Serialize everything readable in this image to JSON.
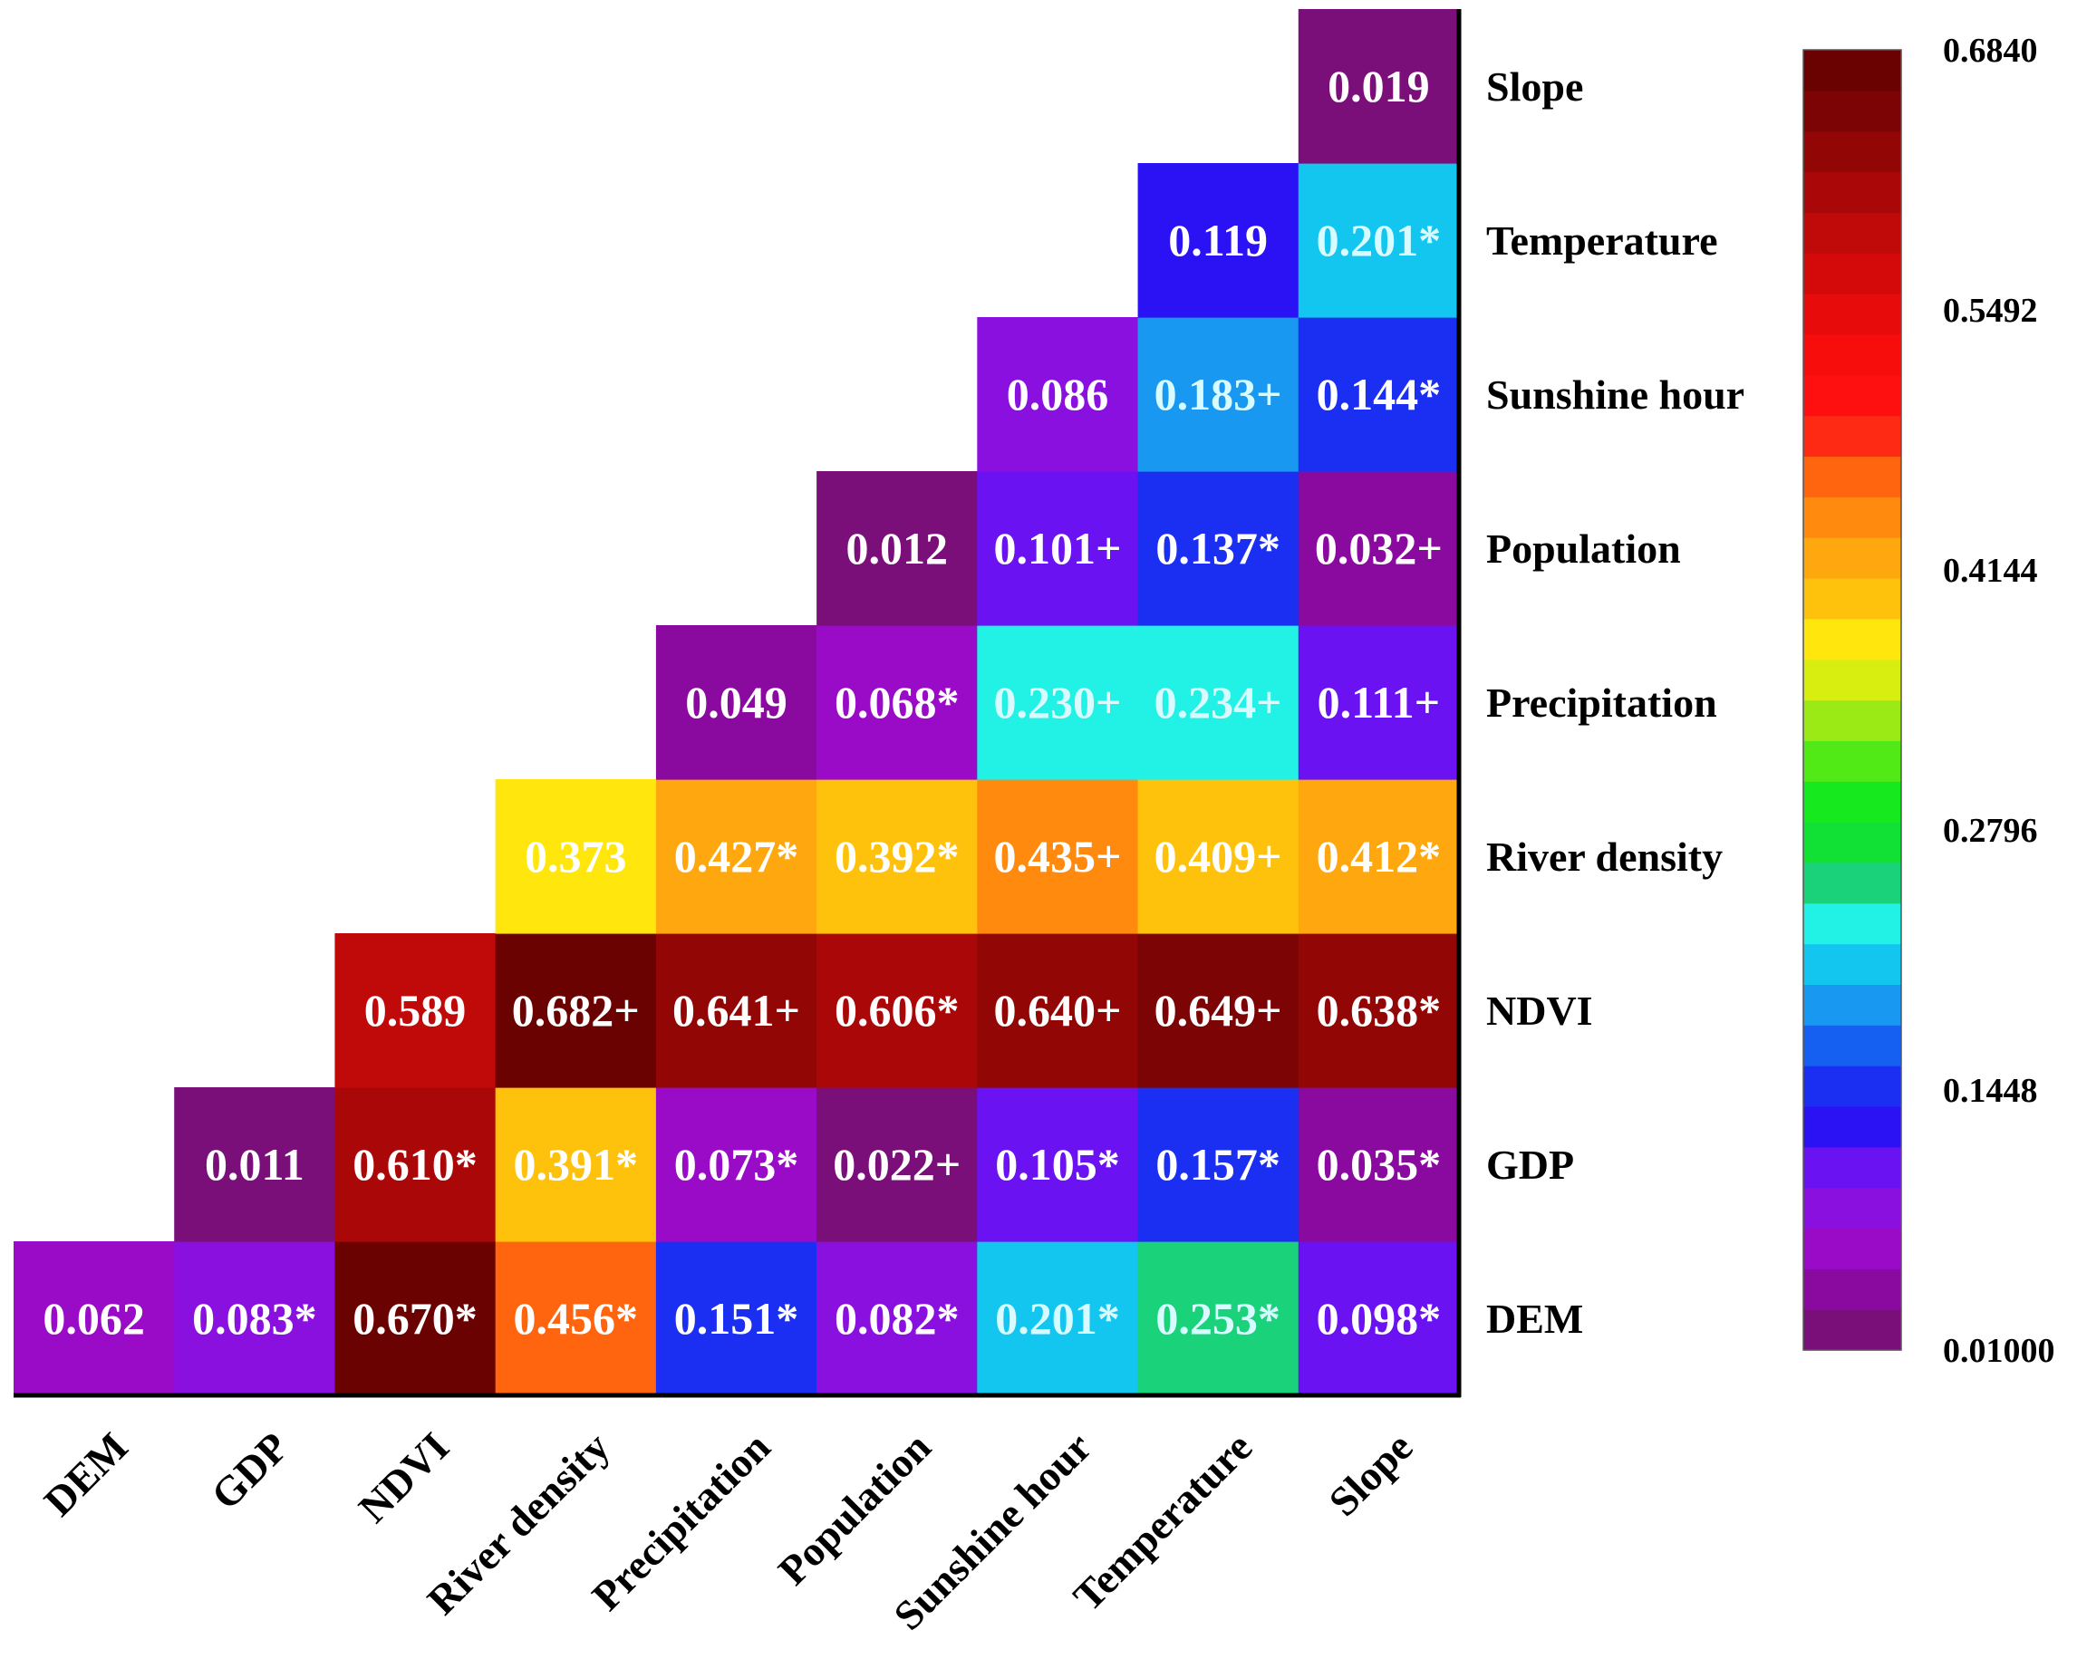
{
  "chart_data": {
    "type": "heatmap",
    "layout": "lower-triangular interaction matrix",
    "variables": [
      "DEM",
      "GDP",
      "NDVI",
      "River density",
      "Precipitation",
      "Population",
      "Sunshine hour",
      "Temperature",
      "Slope"
    ],
    "x_labels": [
      "DEM",
      "GDP",
      "NDVI",
      "River density",
      "Precipitation",
      "Population",
      "Sunshine hour",
      "Temperature",
      "Slope"
    ],
    "y_labels_top_to_bottom": [
      "Slope",
      "Temperature",
      "Sunshine hour",
      "Population",
      "Precipitation",
      "River density",
      "NDVI",
      "GDP",
      "DEM"
    ],
    "rows": [
      {
        "row": "DEM",
        "cells": [
          {
            "col": "DEM",
            "value": 0.062,
            "label": "0.062"
          },
          {
            "col": "GDP",
            "value": 0.083,
            "label": "0.083*"
          },
          {
            "col": "NDVI",
            "value": 0.67,
            "label": "0.670*"
          },
          {
            "col": "River density",
            "value": 0.456,
            "label": "0.456*"
          },
          {
            "col": "Precipitation",
            "value": 0.151,
            "label": "0.151*"
          },
          {
            "col": "Population",
            "value": 0.082,
            "label": "0.082*"
          },
          {
            "col": "Sunshine hour",
            "value": 0.201,
            "label": "0.201*"
          },
          {
            "col": "Temperature",
            "value": 0.253,
            "label": "0.253*"
          },
          {
            "col": "Slope",
            "value": 0.098,
            "label": "0.098*"
          }
        ]
      },
      {
        "row": "GDP",
        "cells": [
          {
            "col": "GDP",
            "value": 0.011,
            "label": "0.011"
          },
          {
            "col": "NDVI",
            "value": 0.61,
            "label": "0.610*"
          },
          {
            "col": "River density",
            "value": 0.391,
            "label": "0.391*"
          },
          {
            "col": "Precipitation",
            "value": 0.073,
            "label": "0.073*"
          },
          {
            "col": "Population",
            "value": 0.022,
            "label": "0.022+"
          },
          {
            "col": "Sunshine hour",
            "value": 0.105,
            "label": "0.105*"
          },
          {
            "col": "Temperature",
            "value": 0.157,
            "label": "0.157*"
          },
          {
            "col": "Slope",
            "value": 0.035,
            "label": "0.035*"
          }
        ]
      },
      {
        "row": "NDVI",
        "cells": [
          {
            "col": "NDVI",
            "value": 0.589,
            "label": "0.589"
          },
          {
            "col": "River density",
            "value": 0.682,
            "label": "0.682+"
          },
          {
            "col": "Precipitation",
            "value": 0.641,
            "label": "0.641+"
          },
          {
            "col": "Population",
            "value": 0.606,
            "label": "0.606*"
          },
          {
            "col": "Sunshine hour",
            "value": 0.64,
            "label": "0.640+"
          },
          {
            "col": "Temperature",
            "value": 0.649,
            "label": "0.649+"
          },
          {
            "col": "Slope",
            "value": 0.638,
            "label": "0.638*"
          }
        ]
      },
      {
        "row": "River density",
        "cells": [
          {
            "col": "River density",
            "value": 0.373,
            "label": "0.373"
          },
          {
            "col": "Precipitation",
            "value": 0.427,
            "label": "0.427*"
          },
          {
            "col": "Population",
            "value": 0.392,
            "label": "0.392*"
          },
          {
            "col": "Sunshine hour",
            "value": 0.435,
            "label": "0.435+"
          },
          {
            "col": "Temperature",
            "value": 0.409,
            "label": "0.409+"
          },
          {
            "col": "Slope",
            "value": 0.412,
            "label": "0.412*"
          }
        ]
      },
      {
        "row": "Precipitation",
        "cells": [
          {
            "col": "Precipitation",
            "value": 0.049,
            "label": "0.049"
          },
          {
            "col": "Population",
            "value": 0.068,
            "label": "0.068*"
          },
          {
            "col": "Sunshine hour",
            "value": 0.23,
            "label": "0.230+"
          },
          {
            "col": "Temperature",
            "value": 0.234,
            "label": "0.234+"
          },
          {
            "col": "Slope",
            "value": 0.111,
            "label": "0.111+"
          }
        ]
      },
      {
        "row": "Population",
        "cells": [
          {
            "col": "Population",
            "value": 0.012,
            "label": "0.012"
          },
          {
            "col": "Sunshine hour",
            "value": 0.101,
            "label": "0.101+"
          },
          {
            "col": "Temperature",
            "value": 0.137,
            "label": "0.137*"
          },
          {
            "col": "Slope",
            "value": 0.032,
            "label": "0.032+"
          }
        ]
      },
      {
        "row": "Sunshine hour",
        "cells": [
          {
            "col": "Sunshine hour",
            "value": 0.086,
            "label": "0.086"
          },
          {
            "col": "Temperature",
            "value": 0.183,
            "label": "0.183+"
          },
          {
            "col": "Slope",
            "value": 0.144,
            "label": "0.144*"
          }
        ]
      },
      {
        "row": "Temperature",
        "cells": [
          {
            "col": "Temperature",
            "value": 0.119,
            "label": "0.119"
          },
          {
            "col": "Slope",
            "value": 0.201,
            "label": "0.201*"
          }
        ]
      },
      {
        "row": "Slope",
        "cells": [
          {
            "col": "Slope",
            "value": 0.019,
            "label": "0.019"
          }
        ]
      }
    ],
    "colorbar": {
      "min": 0.01,
      "max": 0.684,
      "tick_labels": [
        "0.6840",
        "0.5492",
        "0.4144",
        "0.2796",
        "0.1448",
        "0.01000"
      ],
      "tick_values": [
        0.684,
        0.5492,
        0.4144,
        0.2796,
        0.1448,
        0.01
      ],
      "colors_bottom_to_top": [
        "#7a0f7a",
        "#8a0aa0",
        "#9a0bc8",
        "#8a10e0",
        "#6a12f2",
        "#2b12f5",
        "#1a2ff2",
        "#1560f0",
        "#1898f0",
        "#12c6f0",
        "#22f2e6",
        "#1ad27a",
        "#11e035",
        "#16ea1e",
        "#52ea16",
        "#9bea16",
        "#d7ee10",
        "#ffe60c",
        "#ffc20c",
        "#ffa70e",
        "#ff8a0e",
        "#ff640e",
        "#ff2a14",
        "#ff1010",
        "#f80d0d",
        "#e80b0b",
        "#d40a0a",
        "#c00a0a",
        "#aa0808",
        "#920606",
        "#7c0404",
        "#6a0202"
      ]
    }
  }
}
